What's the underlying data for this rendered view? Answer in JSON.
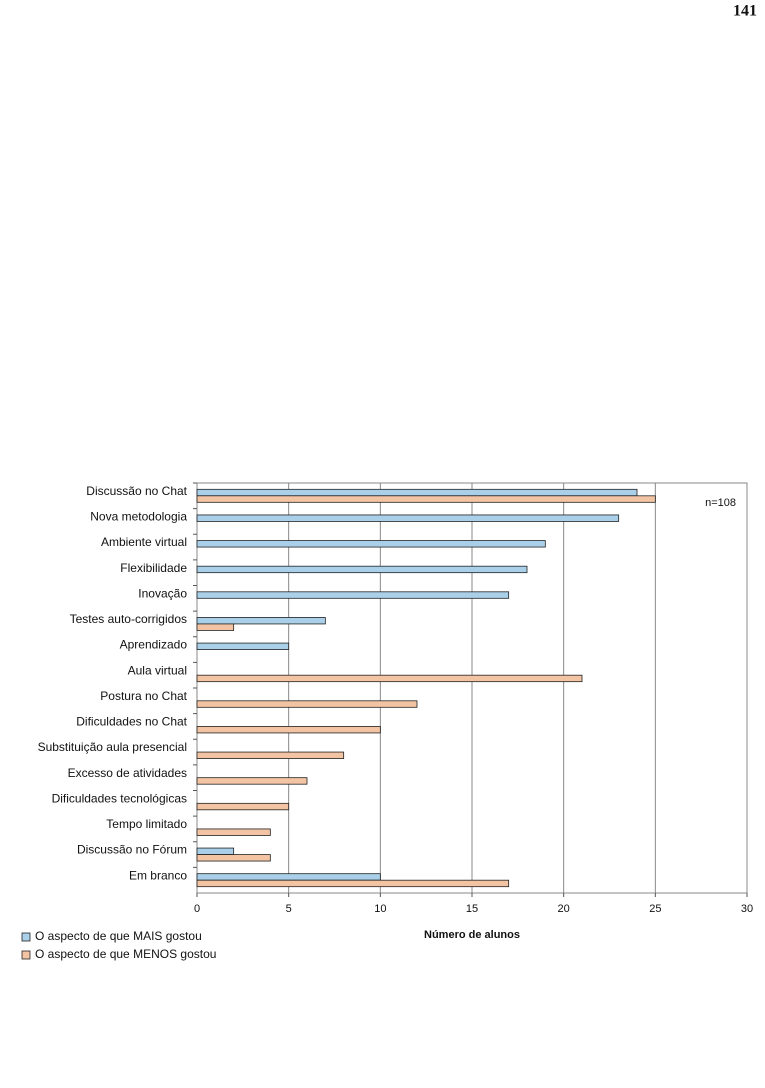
{
  "page_number": "141",
  "chart_data": {
    "type": "hbar",
    "categories": [
      "Discussão no Chat",
      "Nova metodologia",
      "Ambiente virtual",
      "Flexibilidade",
      "Inovação",
      "Testes auto-corrigidos",
      "Aprendizado",
      "Aula virtual",
      "Postura no Chat",
      "Dificuldades no Chat",
      "Substituição aula presencial",
      "Excesso de atividades",
      "Dificuldades tecnológicas",
      "Tempo limitado",
      "Discussão no Fórum",
      "Em branco"
    ],
    "series": [
      {
        "name": "O aspecto de que MAIS gostou",
        "color": "#a9d0e8",
        "values": [
          24,
          23,
          19,
          18,
          17,
          7,
          5,
          0,
          0,
          0,
          0,
          0,
          0,
          0,
          2,
          10
        ]
      },
      {
        "name": "O aspecto de que MENOS gostou",
        "color": "#f2c4a4",
        "values": [
          25,
          0,
          0,
          0,
          0,
          2,
          0,
          21,
          12,
          10,
          8,
          6,
          5,
          4,
          4,
          17
        ]
      }
    ],
    "xlabel": "Número de alunos",
    "annotation": "n=108",
    "xlim": [
      0,
      30
    ],
    "xticks": [
      0,
      5,
      10,
      15,
      20,
      25,
      30
    ],
    "grid": true,
    "legend": "bottom-left"
  }
}
